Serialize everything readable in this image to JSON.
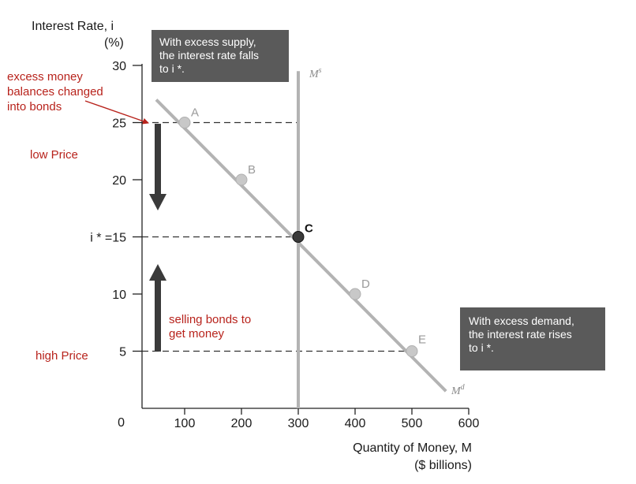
{
  "chart_data": {
    "type": "line",
    "ylabel_line1": "Interest Rate, i",
    "ylabel_line2": "(%)",
    "xlabel_line1": "Quantity of Money, M",
    "xlabel_line2": "($ billions)",
    "xlim": [
      0,
      600
    ],
    "ylim": [
      0,
      30
    ],
    "x_ticks": [
      0,
      100,
      200,
      300,
      400,
      500,
      600
    ],
    "y_ticks": [
      {
        "value": 0,
        "label": "0"
      },
      {
        "value": 5,
        "label": "5"
      },
      {
        "value": 10,
        "label": "10"
      },
      {
        "value": 15,
        "label": "i * =15"
      },
      {
        "value": 20,
        "label": "20"
      },
      {
        "value": 25,
        "label": "25"
      },
      {
        "value": 30,
        "label": "30"
      }
    ],
    "series": [
      {
        "name": "Md",
        "kind": "demand",
        "x": [
          50,
          560
        ],
        "y": [
          27,
          1.5
        ],
        "color": "#b3b3b3"
      },
      {
        "name": "Ms",
        "kind": "supply",
        "x": [
          300,
          300
        ],
        "y": [
          0,
          29.5
        ],
        "color": "#b3b3b3"
      }
    ],
    "points": [
      {
        "label": "A",
        "x": 100,
        "y": 25
      },
      {
        "label": "B",
        "x": 200,
        "y": 20
      },
      {
        "label": "C",
        "x": 300,
        "y": 15,
        "equilibrium": true
      },
      {
        "label": "D",
        "x": 400,
        "y": 10
      },
      {
        "label": "E",
        "x": 500,
        "y": 5
      }
    ],
    "dashed_levels": [
      {
        "y": 25,
        "x_end": 300
      },
      {
        "y": 15,
        "x_end": 300
      },
      {
        "y": 5,
        "x_end": 500
      }
    ],
    "curve_labels": {
      "supply": "M",
      "supply_sup": "s",
      "demand": "M",
      "demand_sup": "d"
    },
    "callouts": {
      "excess_supply": [
        "With excess supply,",
        "the interest rate falls",
        "to i *."
      ],
      "excess_demand": [
        "With excess demand,",
        "the interest rate rises",
        "to i *."
      ]
    },
    "annotations": {
      "excess_money": [
        "excess money",
        "balances changed",
        "into bonds"
      ],
      "low_price": "low Price",
      "high_price": "high Price",
      "selling_bonds": [
        "selling bonds to",
        "get money"
      ]
    },
    "colors": {
      "curve": "#b3b3b3",
      "callout_box": "#5a5a5a",
      "annotation": "#b8231c",
      "arrow": "#3a3a3a",
      "point": "#c8c8c8",
      "point_equilibrium": "#3a3a3a"
    }
  }
}
